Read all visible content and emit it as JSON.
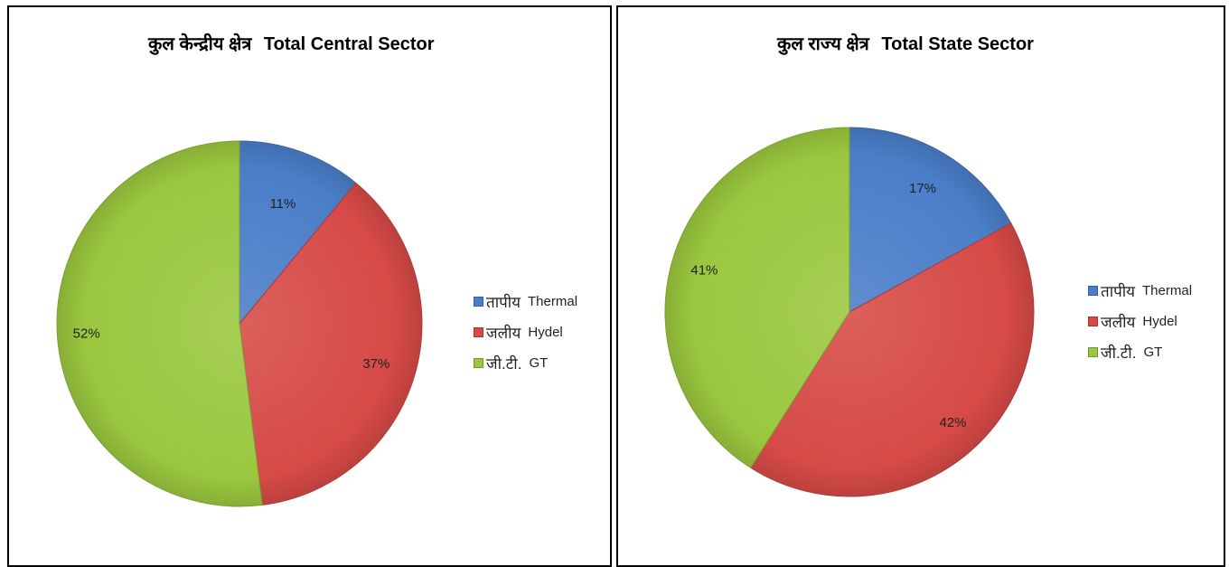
{
  "chart_data": [
    {
      "type": "pie",
      "title_hi": "कुल केन्द्रीय क्षेत्र",
      "title_en": "Total Central Sector",
      "categories": [
        "तापीय Thermal",
        "जलीय Hydel",
        "जी.टी. GT"
      ],
      "values": [
        11,
        37,
        52
      ],
      "labels": [
        "11%",
        "37%",
        "52%"
      ],
      "legend": [
        {
          "hi": "तापीय",
          "en": "Thermal"
        },
        {
          "hi": "जलीय",
          "en": "Hydel"
        },
        {
          "hi": "जी.टी.",
          "en": "GT"
        }
      ],
      "legend_position": "right",
      "colors": [
        "#4a7ec8",
        "#d64a47",
        "#9ac73f"
      ]
    },
    {
      "type": "pie",
      "title_hi": "कुल राज्य क्षेत्र",
      "title_en": "Total State Sector",
      "categories": [
        "तापीय Thermal",
        "जलीय Hydel",
        "जी.टी. GT"
      ],
      "values": [
        17,
        42,
        41
      ],
      "labels": [
        "17%",
        "42%",
        "41%"
      ],
      "legend": [
        {
          "hi": "तापीय",
          "en": "Thermal"
        },
        {
          "hi": "जलीय",
          "en": "Hydel"
        },
        {
          "hi": "जी.टी.",
          "en": "GT"
        }
      ],
      "legend_position": "right",
      "colors": [
        "#4a7ec8",
        "#d64a47",
        "#9ac73f"
      ]
    }
  ]
}
